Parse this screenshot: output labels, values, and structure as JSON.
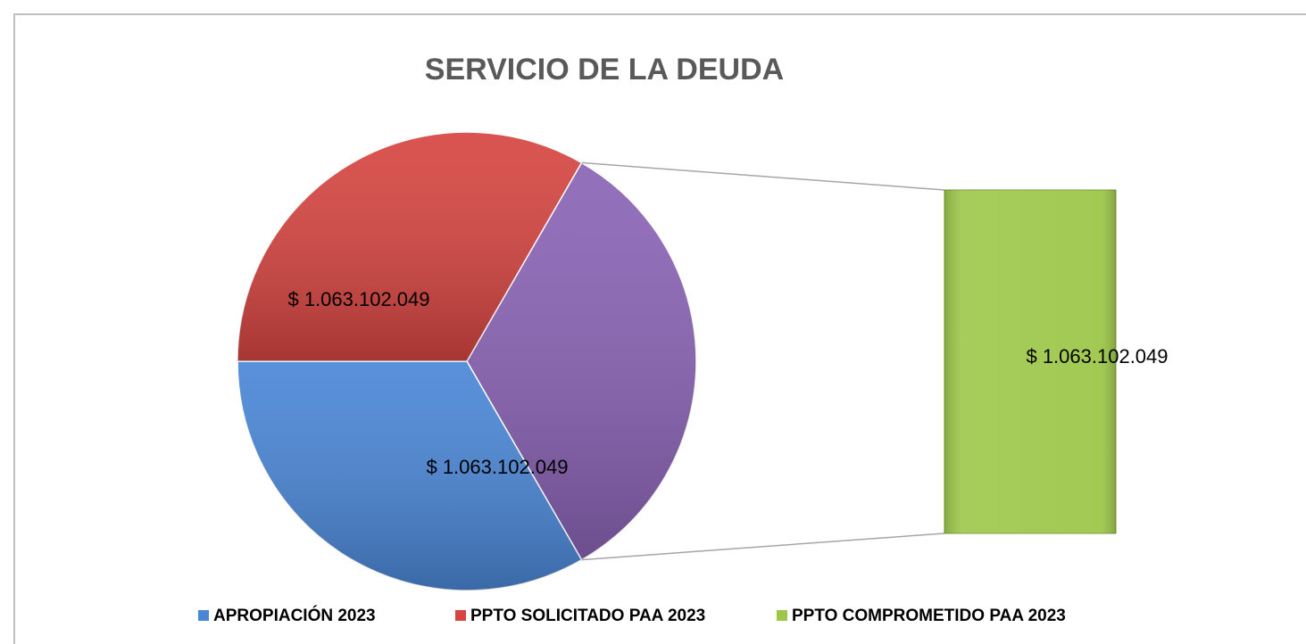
{
  "chart_data": {
    "type": "bar-of-pie",
    "title": "SERVICIO DE LA DEUDA",
    "categories": [
      "APROPIACIÓN 2023",
      "PPTO SOLICITADO PAA 2023",
      "PPTO COMPROMETIDO PAA 2023"
    ],
    "values": [
      1063102049,
      1063102049,
      1063102049
    ],
    "value_labels": [
      "$ 1.063.102.049",
      "$ 1.063.102.049",
      "$ 1.063.102.049"
    ],
    "colors": [
      "#4a86d6",
      "#d64541",
      "#9dc74a"
    ],
    "other_color": "#8a63b5",
    "legend": "bottom"
  }
}
